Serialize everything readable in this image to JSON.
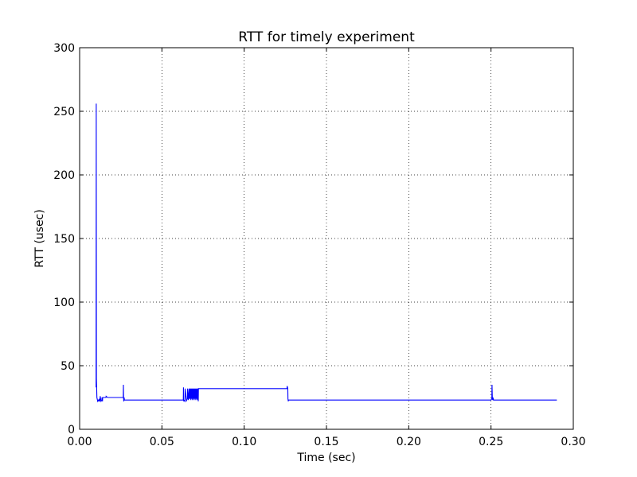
{
  "chart_data": {
    "type": "line",
    "title": "RTT for timely experiment",
    "xlabel": "Time (sec)",
    "ylabel": "RTT (usec)",
    "xlim": [
      0.0,
      0.3
    ],
    "ylim": [
      0,
      300
    ],
    "xticks": [
      0.0,
      0.05,
      0.1,
      0.15,
      0.2,
      0.25,
      0.3
    ],
    "xtick_labels": [
      "0.00",
      "0.05",
      "0.10",
      "0.15",
      "0.20",
      "0.25",
      "0.30"
    ],
    "yticks": [
      0,
      50,
      100,
      150,
      200,
      250,
      300
    ],
    "ytick_labels": [
      "0",
      "50",
      "100",
      "150",
      "200",
      "250",
      "300"
    ],
    "grid": true,
    "line_color": "#0000ff",
    "series": [
      {
        "x": [
          0.01,
          0.0101,
          0.0102,
          0.0105,
          0.011,
          0.0115,
          0.0118,
          0.012,
          0.0121,
          0.0124,
          0.0125,
          0.013,
          0.0135,
          0.0136,
          0.0139,
          0.014,
          0.015,
          0.016,
          0.0161,
          0.017,
          0.02,
          0.025,
          0.0265,
          0.0266,
          0.0267,
          0.0268,
          0.027,
          0.0271,
          0.0272,
          0.03,
          0.045,
          0.06,
          0.063,
          0.0631,
          0.0632,
          0.0633,
          0.064,
          0.0641,
          0.065,
          0.0651,
          0.0655,
          0.0656,
          0.066,
          0.0661,
          0.0665,
          0.0666,
          0.067,
          0.0671,
          0.0675,
          0.0676,
          0.068,
          0.0681,
          0.0685,
          0.0686,
          0.069,
          0.0691,
          0.0695,
          0.0696,
          0.07,
          0.0701,
          0.0705,
          0.0706,
          0.071,
          0.0711,
          0.0715,
          0.0716,
          0.072,
          0.0721,
          0.0722,
          0.08,
          0.1,
          0.12,
          0.126,
          0.1261,
          0.1265,
          0.1266,
          0.1268,
          0.1269,
          0.1275,
          0.15,
          0.2,
          0.25,
          0.2505,
          0.2506,
          0.2508,
          0.251,
          0.2512,
          0.2515,
          0.26,
          0.29
        ],
        "y": [
          33,
          256,
          40,
          25,
          22,
          23,
          22,
          24,
          22,
          23,
          26,
          22,
          23,
          25,
          22,
          25,
          25,
          25,
          26,
          25,
          25,
          25,
          25,
          35,
          25,
          22,
          23,
          25,
          23,
          23,
          23,
          23,
          23,
          33,
          22,
          23,
          22,
          32,
          22,
          23,
          24,
          32,
          24,
          23,
          32,
          24,
          32,
          24,
          32,
          23,
          32,
          24,
          32,
          23,
          32,
          24,
          32,
          23,
          32,
          24,
          32,
          23,
          32,
          24,
          32,
          23,
          32,
          22,
          32,
          32,
          32,
          32,
          32,
          34,
          32,
          24,
          22,
          23,
          23,
          23,
          23,
          23,
          24,
          35,
          25,
          23,
          25,
          23,
          23,
          23
        ]
      }
    ]
  }
}
